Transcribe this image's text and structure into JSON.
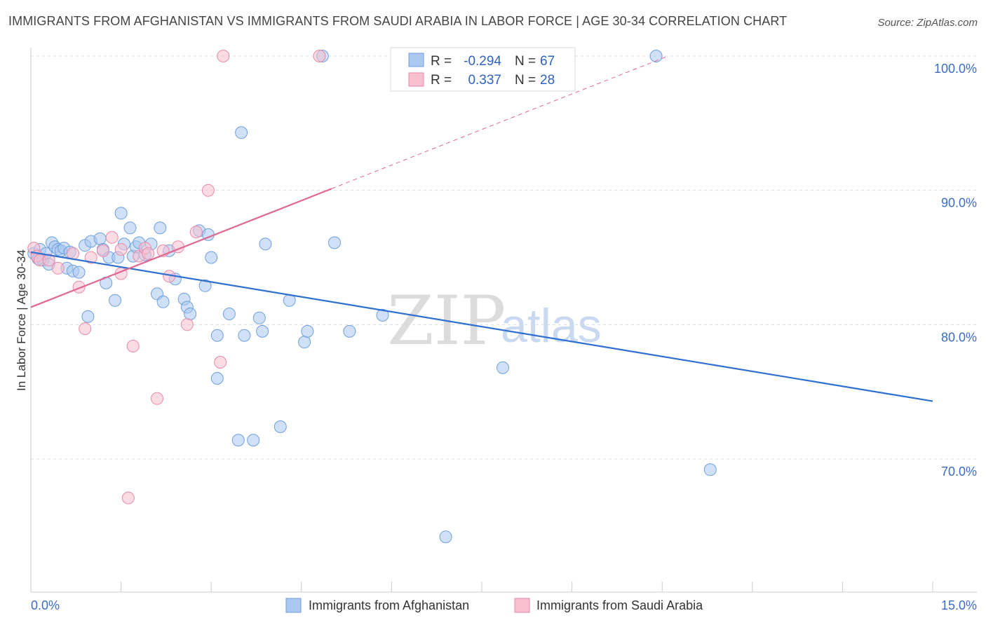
{
  "title": "IMMIGRANTS FROM AFGHANISTAN VS IMMIGRANTS FROM SAUDI ARABIA IN LABOR FORCE | AGE 30-34 CORRELATION CHART",
  "source": "Source: ZipAtlas.com",
  "watermark": {
    "zip": "ZIP",
    "atlas": "atlas"
  },
  "colors": {
    "blue_fill": "#aac8f0",
    "blue_stroke": "#6f9fdc",
    "blue_line": "#2f6fd0",
    "pink_fill": "#f7bfd0",
    "pink_stroke": "#e88aa8",
    "pink_line": "#e06890",
    "grid": "#d9dde3",
    "tick_label": "#3a6cc8"
  },
  "legend": {
    "rows": [
      {
        "r_label": "R =",
        "r_value": "-0.294",
        "n_label": "N =",
        "n_value": "67"
      },
      {
        "r_label": "R =",
        "r_value": " 0.337",
        "n_label": "N =",
        "n_value": "28"
      }
    ]
  },
  "chart_data": {
    "type": "scatter",
    "xlabel": "",
    "ylabel": "In Labor Force | Age 30-34",
    "xlim": [
      0,
      15
    ],
    "ylim": [
      60,
      100
    ],
    "x_tick_labels": [
      "0.0%",
      "15.0%"
    ],
    "y_ticks": [
      70,
      80,
      90,
      100
    ],
    "y_tick_labels": [
      "70.0%",
      "80.0%",
      "90.0%",
      "100.0%"
    ],
    "grid": true,
    "series": [
      {
        "name": "Immigrants from Afghanistan",
        "color": "blue",
        "trend": {
          "x0": 0,
          "y0": 85.4,
          "x1": 15,
          "y1": 74.3,
          "dashed_from": null
        },
        "points": [
          [
            0.05,
            85.3
          ],
          [
            0.1,
            85.1
          ],
          [
            0.15,
            85.6
          ],
          [
            0.2,
            84.8
          ],
          [
            0.25,
            85.3
          ],
          [
            0.3,
            84.5
          ],
          [
            0.35,
            86.1
          ],
          [
            0.4,
            85.8
          ],
          [
            0.45,
            85.6
          ],
          [
            0.5,
            85.5
          ],
          [
            0.55,
            85.7
          ],
          [
            0.6,
            84.2
          ],
          [
            0.7,
            84.0
          ],
          [
            0.8,
            83.9
          ],
          [
            0.9,
            85.9
          ],
          [
            0.95,
            80.6
          ],
          [
            1.0,
            86.2
          ],
          [
            1.15,
            86.4
          ],
          [
            1.2,
            85.6
          ],
          [
            1.25,
            83.1
          ],
          [
            1.3,
            85.0
          ],
          [
            1.4,
            81.8
          ],
          [
            1.45,
            85.0
          ],
          [
            1.5,
            88.3
          ],
          [
            1.55,
            86.0
          ],
          [
            1.65,
            87.2
          ],
          [
            1.7,
            85.1
          ],
          [
            1.75,
            85.8
          ],
          [
            1.8,
            86.1
          ],
          [
            1.9,
            85.2
          ],
          [
            2.0,
            86.0
          ],
          [
            2.1,
            82.3
          ],
          [
            2.15,
            87.2
          ],
          [
            2.2,
            81.7
          ],
          [
            2.3,
            85.5
          ],
          [
            2.4,
            83.4
          ],
          [
            2.55,
            81.9
          ],
          [
            2.6,
            81.3
          ],
          [
            2.65,
            80.8
          ],
          [
            2.8,
            87.0
          ],
          [
            2.9,
            82.9
          ],
          [
            2.95,
            86.7
          ],
          [
            3.0,
            85.0
          ],
          [
            3.1,
            79.2
          ],
          [
            3.1,
            76.0
          ],
          [
            3.3,
            80.8
          ],
          [
            3.45,
            71.4
          ],
          [
            3.5,
            94.3
          ],
          [
            3.55,
            79.2
          ],
          [
            3.7,
            71.4
          ],
          [
            3.8,
            80.5
          ],
          [
            3.85,
            79.5
          ],
          [
            3.9,
            86.0
          ],
          [
            4.15,
            72.4
          ],
          [
            4.3,
            81.8
          ],
          [
            4.55,
            78.7
          ],
          [
            4.6,
            79.5
          ],
          [
            4.85,
            100.0
          ],
          [
            5.05,
            86.1
          ],
          [
            5.3,
            79.5
          ],
          [
            5.85,
            80.7
          ],
          [
            6.9,
            64.2
          ],
          [
            7.85,
            76.8
          ],
          [
            10.4,
            100.0
          ],
          [
            11.3,
            69.2
          ],
          [
            0.12,
            84.9
          ],
          [
            0.65,
            85.4
          ]
        ]
      },
      {
        "name": "Immigrants from Saudi Arabia",
        "color": "pink",
        "trend": {
          "x0": 0,
          "y0": 81.3,
          "x1": 10.6,
          "y1": 100.0,
          "dashed_from": 5.0
        },
        "points": [
          [
            0.05,
            85.7
          ],
          [
            0.1,
            85.1
          ],
          [
            0.15,
            84.8
          ],
          [
            0.3,
            84.8
          ],
          [
            0.45,
            84.2
          ],
          [
            0.7,
            85.3
          ],
          [
            0.8,
            82.8
          ],
          [
            0.9,
            79.7
          ],
          [
            1.0,
            85.0
          ],
          [
            1.2,
            85.5
          ],
          [
            1.35,
            86.5
          ],
          [
            1.5,
            83.8
          ],
          [
            1.5,
            85.6
          ],
          [
            1.7,
            78.4
          ],
          [
            1.8,
            85.1
          ],
          [
            1.9,
            85.7
          ],
          [
            2.1,
            74.5
          ],
          [
            2.2,
            85.5
          ],
          [
            2.3,
            83.6
          ],
          [
            2.45,
            85.8
          ],
          [
            2.6,
            80.0
          ],
          [
            2.75,
            86.9
          ],
          [
            2.95,
            90.0
          ],
          [
            3.15,
            77.2
          ],
          [
            3.2,
            100.0
          ],
          [
            4.8,
            100.0
          ],
          [
            1.62,
            67.1
          ],
          [
            1.95,
            85.3
          ]
        ]
      }
    ]
  }
}
